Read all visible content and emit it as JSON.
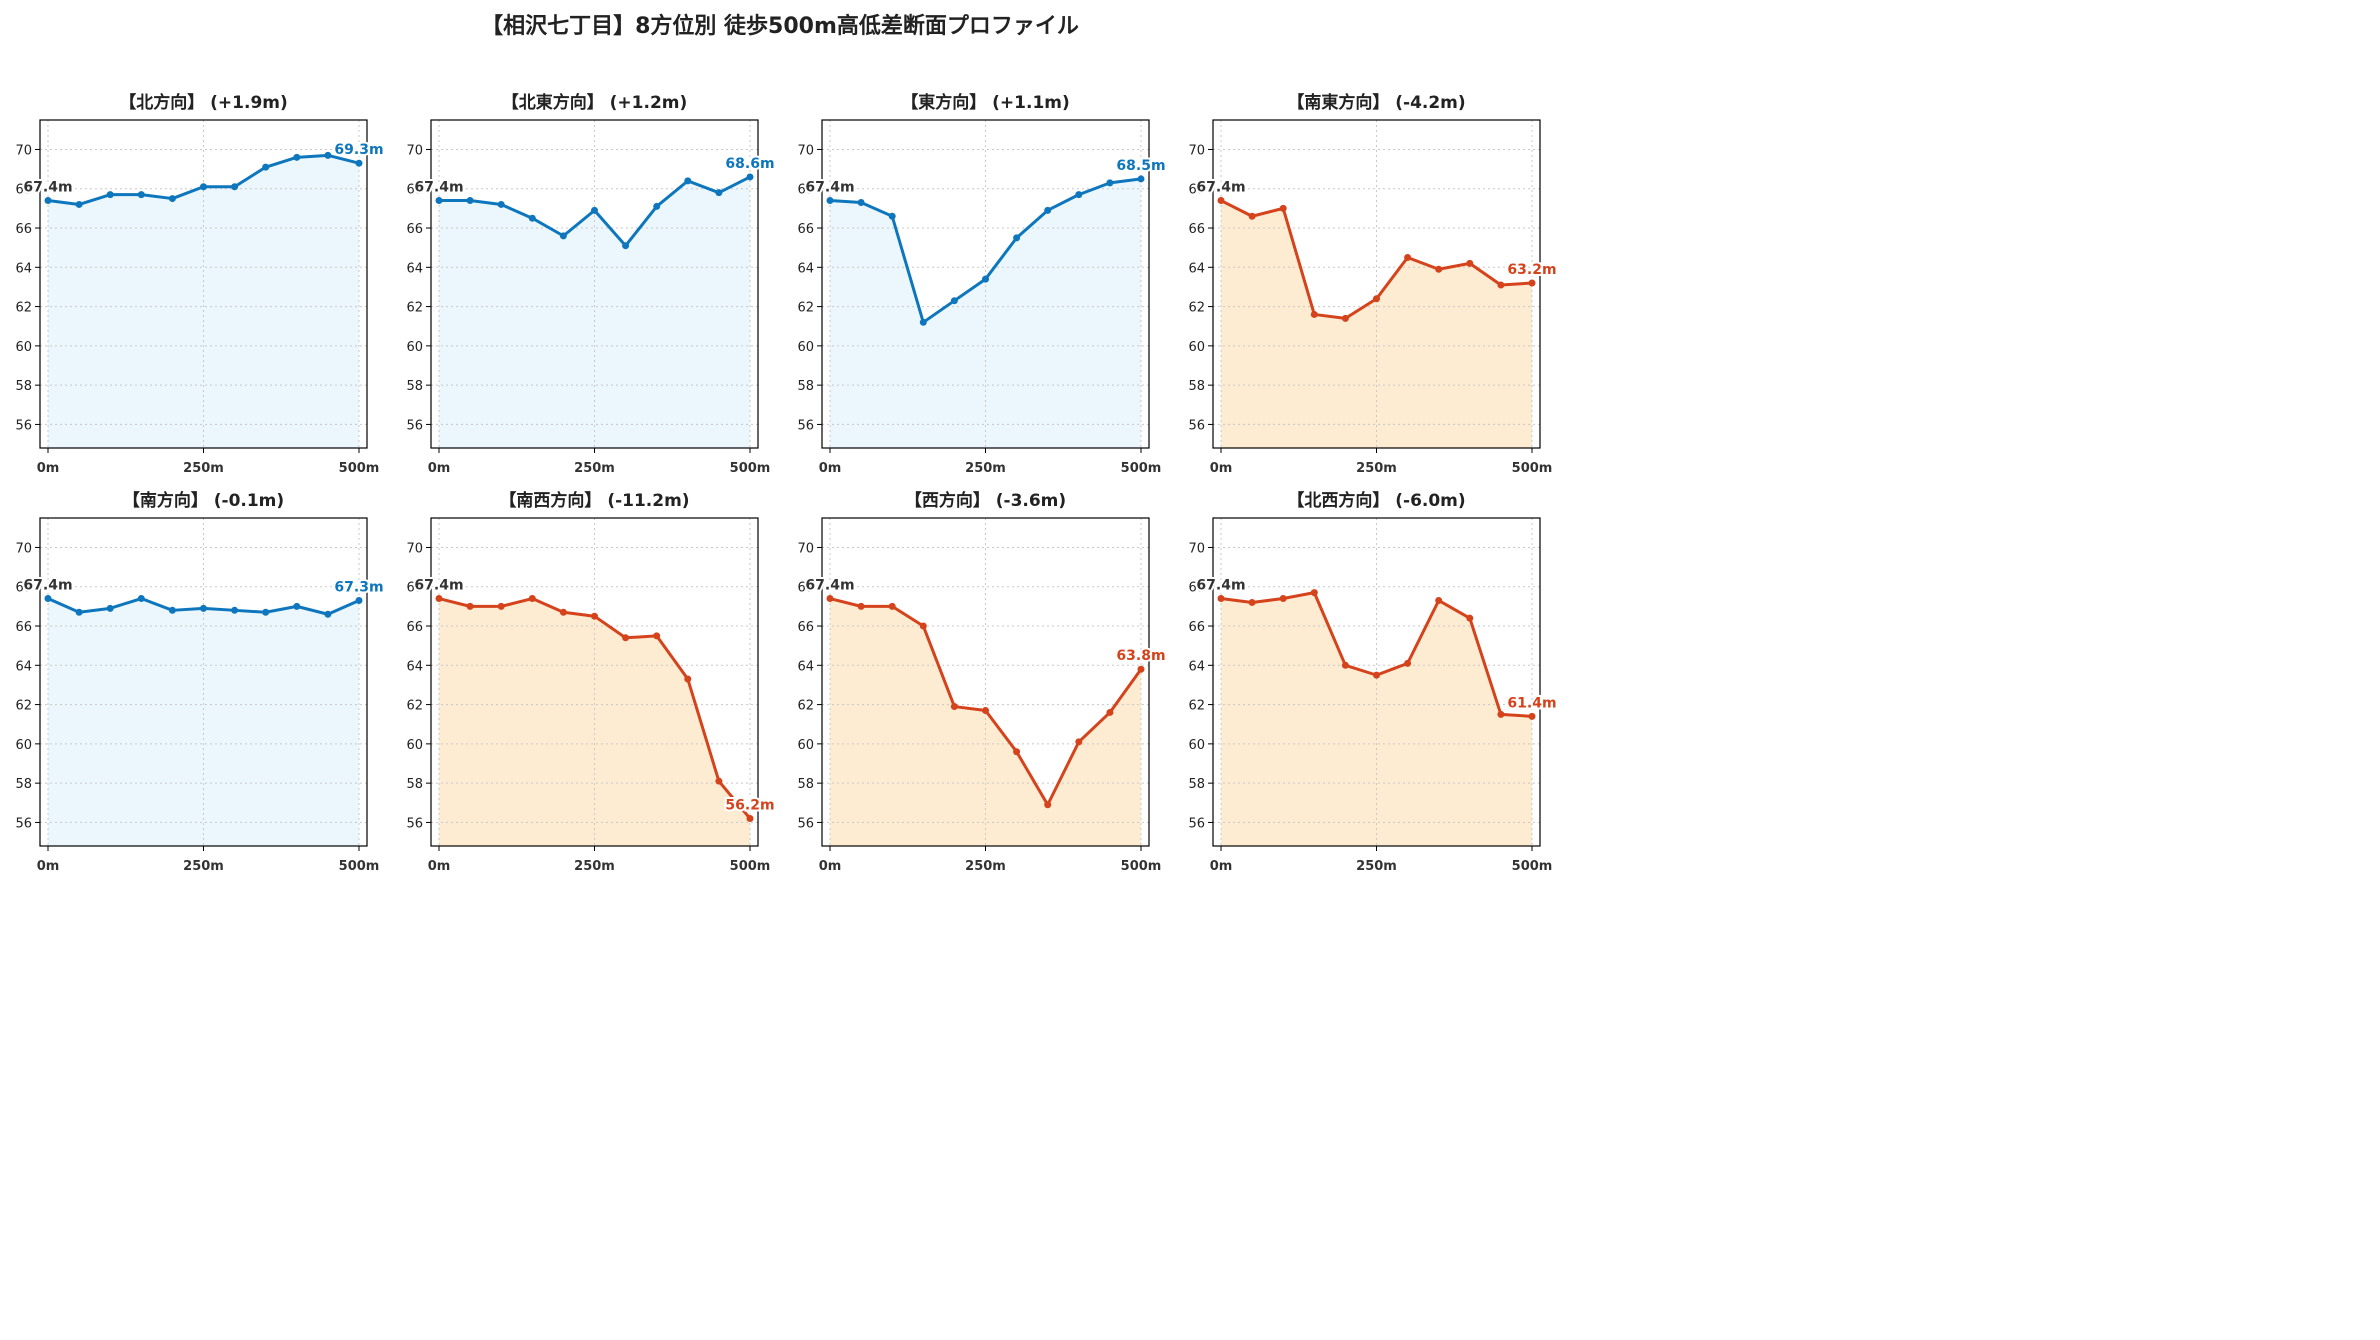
{
  "title": "【相沢七丁目】8方位別 徒歩500m高低差断面プロファイル",
  "colors": {
    "up_line": "#0e76bd",
    "up_fill": "#ebf7fc",
    "down_line": "#d5431c",
    "down_fill": "#fdecd2",
    "start_label": "#333333",
    "grid": "#c8c8c8"
  },
  "chart_data": [
    {
      "type": "area",
      "title": "【北方向】 (+1.9m)",
      "trend": "up",
      "x": [
        0,
        50,
        100,
        150,
        200,
        250,
        300,
        350,
        400,
        450,
        500
      ],
      "x_ticks": [
        0,
        250,
        500
      ],
      "x_tick_labels": [
        "0m",
        "250m",
        "500m"
      ],
      "y": [
        67.4,
        67.2,
        67.7,
        67.7,
        67.5,
        68.1,
        68.1,
        69.1,
        69.6,
        69.7,
        69.3
      ],
      "ylim": [
        54.8,
        71.5
      ],
      "y_ticks": [
        56,
        58,
        60,
        62,
        64,
        66,
        68,
        70
      ],
      "start_label": "67.4m",
      "end_label": "69.3m",
      "grid": true
    },
    {
      "type": "area",
      "title": "【北東方向】 (+1.2m)",
      "trend": "up",
      "x": [
        0,
        50,
        100,
        150,
        200,
        250,
        300,
        350,
        400,
        450,
        500
      ],
      "x_ticks": [
        0,
        250,
        500
      ],
      "x_tick_labels": [
        "0m",
        "250m",
        "500m"
      ],
      "y": [
        67.4,
        67.4,
        67.2,
        66.5,
        65.6,
        66.9,
        65.1,
        67.1,
        68.4,
        67.8,
        68.6
      ],
      "ylim": [
        54.8,
        71.5
      ],
      "y_ticks": [
        56,
        58,
        60,
        62,
        64,
        66,
        68,
        70
      ],
      "start_label": "67.4m",
      "end_label": "68.6m",
      "grid": true
    },
    {
      "type": "area",
      "title": "【東方向】 (+1.1m)",
      "trend": "up",
      "x": [
        0,
        50,
        100,
        150,
        200,
        250,
        300,
        350,
        400,
        450,
        500
      ],
      "x_ticks": [
        0,
        250,
        500
      ],
      "x_tick_labels": [
        "0m",
        "250m",
        "500m"
      ],
      "y": [
        67.4,
        67.3,
        66.6,
        61.2,
        62.3,
        63.4,
        65.5,
        66.9,
        67.7,
        68.3,
        68.5
      ],
      "ylim": [
        54.8,
        71.5
      ],
      "y_ticks": [
        56,
        58,
        60,
        62,
        64,
        66,
        68,
        70
      ],
      "start_label": "67.4m",
      "end_label": "68.5m",
      "grid": true
    },
    {
      "type": "area",
      "title": "【南東方向】 (-4.2m)",
      "trend": "down",
      "x": [
        0,
        50,
        100,
        150,
        200,
        250,
        300,
        350,
        400,
        450,
        500
      ],
      "x_ticks": [
        0,
        250,
        500
      ],
      "x_tick_labels": [
        "0m",
        "250m",
        "500m"
      ],
      "y": [
        67.4,
        66.6,
        67.0,
        61.6,
        61.4,
        62.4,
        64.5,
        63.9,
        64.2,
        63.1,
        63.2
      ],
      "ylim": [
        54.8,
        71.5
      ],
      "y_ticks": [
        56,
        58,
        60,
        62,
        64,
        66,
        68,
        70
      ],
      "start_label": "67.4m",
      "end_label": "63.2m",
      "grid": true
    },
    {
      "type": "area",
      "title": "【南方向】 (-0.1m)",
      "trend": "up",
      "x": [
        0,
        50,
        100,
        150,
        200,
        250,
        300,
        350,
        400,
        450,
        500
      ],
      "x_ticks": [
        0,
        250,
        500
      ],
      "x_tick_labels": [
        "0m",
        "250m",
        "500m"
      ],
      "y": [
        67.4,
        66.7,
        66.9,
        67.4,
        66.8,
        66.9,
        66.8,
        66.7,
        67.0,
        66.6,
        67.3
      ],
      "ylim": [
        54.8,
        71.5
      ],
      "y_ticks": [
        56,
        58,
        60,
        62,
        64,
        66,
        68,
        70
      ],
      "start_label": "67.4m",
      "end_label": "67.3m",
      "grid": true
    },
    {
      "type": "area",
      "title": "【南西方向】 (-11.2m)",
      "trend": "down",
      "x": [
        0,
        50,
        100,
        150,
        200,
        250,
        300,
        350,
        400,
        450,
        500
      ],
      "x_ticks": [
        0,
        250,
        500
      ],
      "x_tick_labels": [
        "0m",
        "250m",
        "500m"
      ],
      "y": [
        67.4,
        67.0,
        67.0,
        67.4,
        66.7,
        66.5,
        65.4,
        65.5,
        63.3,
        58.1,
        56.2
      ],
      "ylim": [
        54.8,
        71.5
      ],
      "y_ticks": [
        56,
        58,
        60,
        62,
        64,
        66,
        68,
        70
      ],
      "start_label": "67.4m",
      "end_label": "56.2m",
      "grid": true
    },
    {
      "type": "area",
      "title": "【西方向】 (-3.6m)",
      "trend": "down",
      "x": [
        0,
        50,
        100,
        150,
        200,
        250,
        300,
        350,
        400,
        450,
        500
      ],
      "x_ticks": [
        0,
        250,
        500
      ],
      "x_tick_labels": [
        "0m",
        "250m",
        "500m"
      ],
      "y": [
        67.4,
        67.0,
        67.0,
        66.0,
        61.9,
        61.7,
        59.6,
        56.9,
        60.1,
        61.6,
        63.8
      ],
      "ylim": [
        54.8,
        71.5
      ],
      "y_ticks": [
        56,
        58,
        60,
        62,
        64,
        66,
        68,
        70
      ],
      "start_label": "67.4m",
      "end_label": "63.8m",
      "grid": true
    },
    {
      "type": "area",
      "title": "【北西方向】 (-6.0m)",
      "trend": "down",
      "x": [
        0,
        50,
        100,
        150,
        200,
        250,
        300,
        350,
        400,
        450,
        500
      ],
      "x_ticks": [
        0,
        250,
        500
      ],
      "x_tick_labels": [
        "0m",
        "250m",
        "500m"
      ],
      "y": [
        67.4,
        67.2,
        67.4,
        67.7,
        64.0,
        63.5,
        64.1,
        67.3,
        66.4,
        61.5,
        61.4
      ],
      "ylim": [
        54.8,
        71.5
      ],
      "y_ticks": [
        56,
        58,
        60,
        62,
        64,
        66,
        68,
        70
      ],
      "start_label": "67.4m",
      "end_label": "61.4m",
      "grid": true
    }
  ]
}
